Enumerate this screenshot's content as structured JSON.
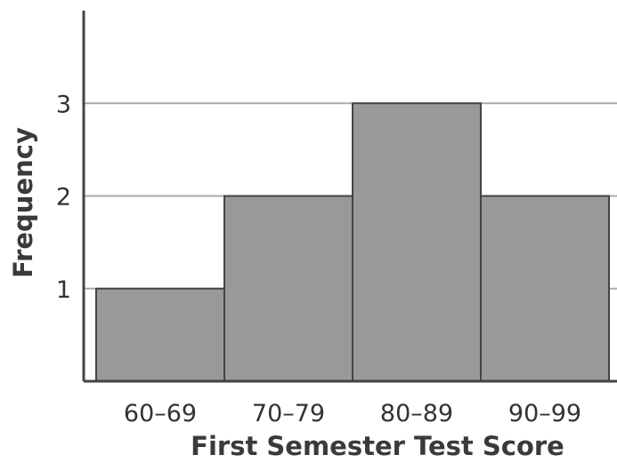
{
  "chart_data": {
    "type": "bar",
    "title": "",
    "xlabel": "First Semester Test Score",
    "ylabel": "Frequency",
    "categories": [
      "60–69",
      "70–79",
      "80–89",
      "90–99"
    ],
    "values": [
      1,
      2,
      3,
      2
    ],
    "y_ticks": [
      "1",
      "2",
      "3"
    ],
    "ylim": [
      0,
      4
    ],
    "grid": true,
    "legend": "none",
    "colors": {
      "bar_fill": "#999999",
      "bar_stroke": "#444444",
      "axis": "#444444",
      "grid": "#aaaaaa"
    }
  }
}
